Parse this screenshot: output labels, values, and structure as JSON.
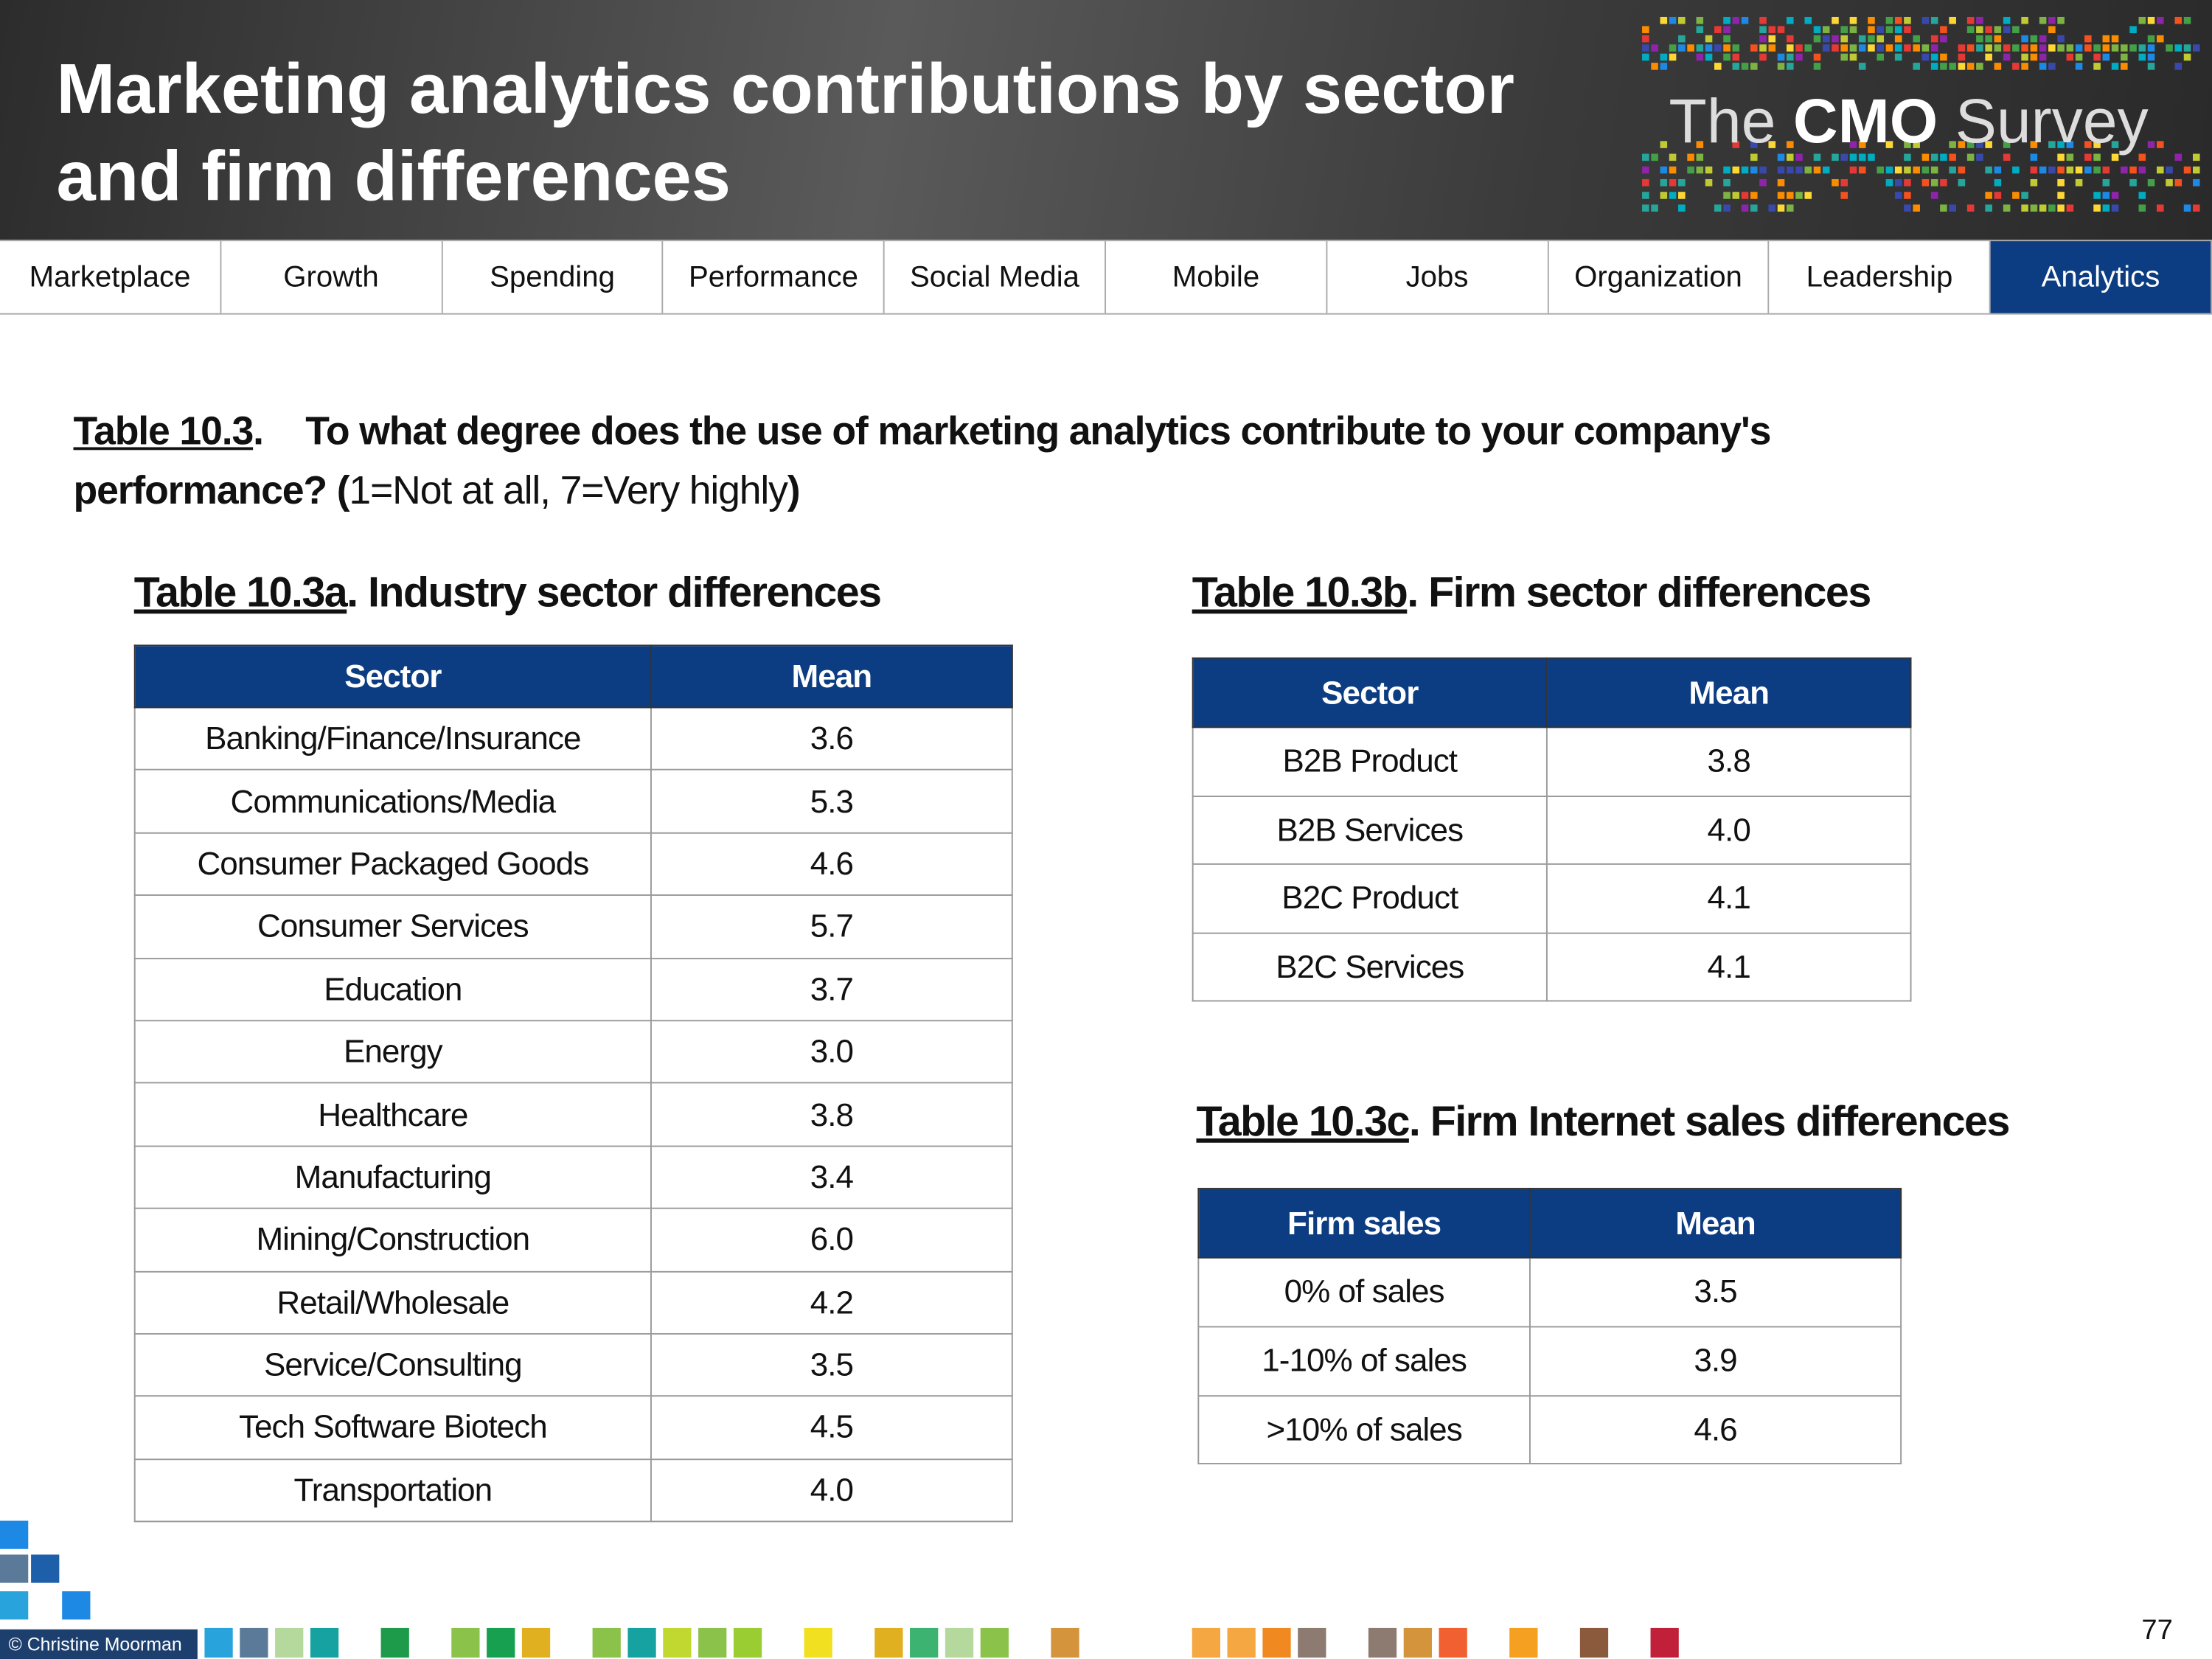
{
  "header": {
    "title_lines": [
      "Marketing analytics contributions by sector",
      "and firm differences"
    ],
    "logo": {
      "pre": "The",
      "bold": "CMO",
      "post": "Survey"
    }
  },
  "nav": {
    "tabs": [
      "Marketplace",
      "Growth",
      "Spending",
      "Performance",
      "Social Media",
      "Mobile",
      "Jobs",
      "Organization",
      "Leadership",
      "Analytics"
    ],
    "active": "Analytics"
  },
  "question": {
    "label": "Table 10.3",
    "label_suffix": ".",
    "text_bold": "To what degree does the use of marketing analytics contribute to your company's performance? (",
    "text_plain": "1=Not at all, 7=Very highly",
    "text_end": ")"
  },
  "tables": [
    {
      "label": "Table 10.3a",
      "heading": ". Industry sector differences",
      "columns": [
        "Sector",
        "Mean"
      ],
      "rows": [
        [
          "Banking/Finance/Insurance",
          "3.6"
        ],
        [
          "Communications/Media",
          "5.3"
        ],
        [
          "Consumer Packaged Goods",
          "4.6"
        ],
        [
          "Consumer Services",
          "5.7"
        ],
        [
          "Education",
          "3.7"
        ],
        [
          "Energy",
          "3.0"
        ],
        [
          "Healthcare",
          "3.8"
        ],
        [
          "Manufacturing",
          "3.4"
        ],
        [
          "Mining/Construction",
          "6.0"
        ],
        [
          "Retail/Wholesale",
          "4.2"
        ],
        [
          "Service/Consulting",
          "3.5"
        ],
        [
          "Tech Software Biotech",
          "4.5"
        ],
        [
          "Transportation",
          "4.0"
        ]
      ]
    },
    {
      "label": "Table 10.3b",
      "heading": ". Firm sector differences",
      "columns": [
        "Sector",
        "Mean"
      ],
      "rows": [
        [
          "B2B Product",
          "3.8"
        ],
        [
          "B2B Services",
          "4.0"
        ],
        [
          "B2C Product",
          "4.1"
        ],
        [
          "B2C Services",
          "4.1"
        ]
      ]
    },
    {
      "label": "Table 10.3c",
      "heading": ". Firm Internet sales differences",
      "columns": [
        "Firm sales",
        "Mean"
      ],
      "rows": [
        [
          "0% of sales",
          "3.5"
        ],
        [
          "1-10% of sales",
          "3.9"
        ],
        [
          ">10% of sales",
          "4.6"
        ]
      ]
    }
  ],
  "footer": {
    "copyright": "© Christine Moorman",
    "page": "77"
  }
}
